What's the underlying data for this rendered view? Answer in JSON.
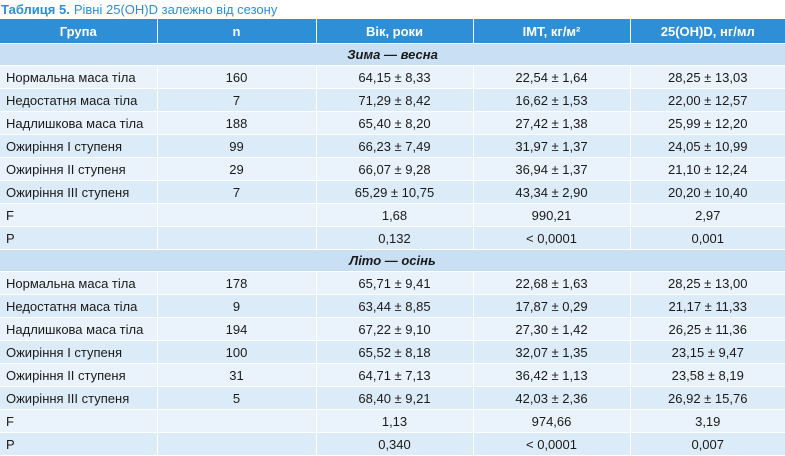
{
  "caption": {
    "label": "Таблиця 5.",
    "text": "Рівні 25(OH)D залежно від сезону"
  },
  "headers": [
    "Група",
    "n",
    "Вік, роки",
    "ІМТ, кг/м²",
    "25(OH)D, нг/мл"
  ],
  "sections": [
    {
      "title": "Зима — весна",
      "rows": [
        [
          "Нормальна маса тіла",
          "160",
          "64,15 ± 8,33",
          "22,54 ± 1,64",
          "28,25 ± 13,03"
        ],
        [
          "Недостатня маса тіла",
          "7",
          "71,29 ± 8,42",
          "16,62 ± 1,53",
          "22,00 ± 12,57"
        ],
        [
          "Надлишкова маса тіла",
          "188",
          "65,40 ± 8,20",
          "27,42 ± 1,38",
          "25,99 ± 12,20"
        ],
        [
          "Ожиріння І ступеня",
          "99",
          "66,23 ± 7,49",
          "31,97 ± 1,37",
          "24,05 ± 10,99"
        ],
        [
          "Ожиріння ІІ ступеня",
          "29",
          "66,07 ± 9,28",
          "36,94 ± 1,37",
          "21,10 ± 12,24"
        ],
        [
          "Ожиріння ІІІ ступеня",
          "7",
          "65,29 ± 10,75",
          "43,34 ± 2,90",
          "20,20 ± 10,40"
        ],
        [
          "F",
          "",
          "1,68",
          "990,21",
          "2,97"
        ],
        [
          "P",
          "",
          "0,132",
          "< 0,0001",
          "0,001"
        ]
      ]
    },
    {
      "title": "Літо — осінь",
      "rows": [
        [
          "Нормальна маса тіла",
          "178",
          "65,71 ± 9,41",
          "22,68 ± 1,63",
          "28,25 ± 13,00"
        ],
        [
          "Недостатня маса тіла",
          "9",
          "63,44 ± 8,85",
          "17,87 ± 0,29",
          "21,17 ± 11,33"
        ],
        [
          "Надлишкова маса тіла",
          "194",
          "67,22 ± 9,10",
          "27,30 ± 1,42",
          "26,25 ± 11,36"
        ],
        [
          "Ожиріння І ступеня",
          "100",
          "65,52 ± 8,18",
          "32,07 ± 1,35",
          "23,15 ± 9,47"
        ],
        [
          "Ожиріння ІІ ступеня",
          "31",
          "64,71 ± 7,13",
          "36,42 ± 1,13",
          "23,58 ± 8,19"
        ],
        [
          "Ожиріння ІІІ ступеня",
          "5",
          "68,40 ± 9,21",
          "42,03 ± 2,36",
          "26,92 ± 15,76"
        ],
        [
          "F",
          "",
          "1,13",
          "974,66",
          "3,19"
        ],
        [
          "P",
          "",
          "0,340",
          "< 0,0001",
          "0,007"
        ]
      ]
    }
  ],
  "colors": {
    "header_bg": "#2e8fd6",
    "caption_text": "#2a8fd0",
    "row_light": "#eaf3fb",
    "row_dark": "#dcebf8",
    "section_bg": "#c9e0f4"
  }
}
